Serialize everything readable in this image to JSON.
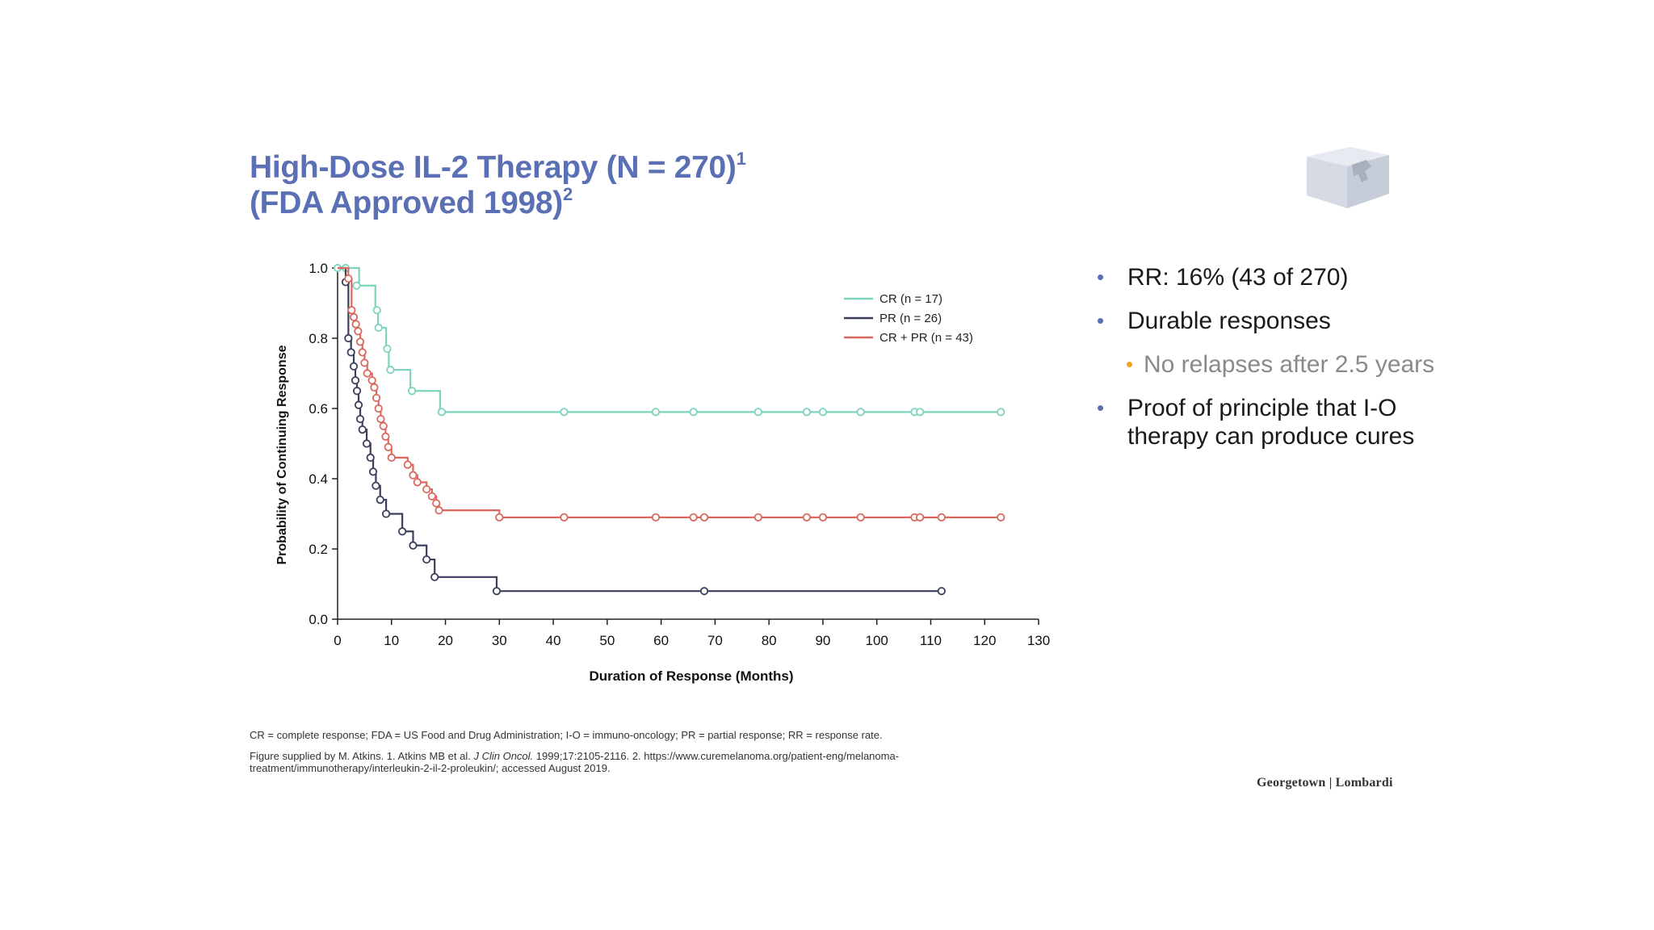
{
  "slide": {
    "title_line1": "High-Dose IL-2 Therapy (N = 270)",
    "title_line1_sup": "1",
    "title_line2": "(FDA Approved 1998)",
    "title_line2_sup": "2",
    "bullets": [
      "RR: 16% (43 of 270)",
      "Durable responses"
    ],
    "sub_bullet": "No relapses after 2.5 years",
    "bullet3": "Proof of principle that I-O therapy can produce cures",
    "footnote1": "CR = complete response; FDA = US Food and Drug Administration; I-O = immuno-oncology; PR = partial response; RR = response rate.",
    "footnote2_pre": "Figure supplied by M. Atkins. 1. Atkins MB et al. ",
    "footnote2_journal": "J Clin Oncol.",
    "footnote2_post": " 1999;17:2105-2116. 2. https://www.curemelanoma.org/patient-eng/melanoma-treatment/immunotherapy/interleukin-2-il-2-proleukin/; accessed August 2019.",
    "brand": "Georgetown | Lombardi",
    "colors": {
      "title": "#5b6fb5",
      "bullet": "#5b6fb5",
      "sub_bullet": "#f0a41c"
    }
  },
  "chart_data": {
    "type": "line",
    "subtype": "kaplan-meier step",
    "xlabel": "Duration of Response (Months)",
    "ylabel": "Probability of Continuing Response",
    "xlim": [
      0,
      130
    ],
    "ylim": [
      0,
      1.0
    ],
    "x_ticks": [
      0,
      10,
      20,
      30,
      40,
      50,
      60,
      70,
      80,
      90,
      100,
      110,
      120,
      130
    ],
    "y_ticks": [
      0.0,
      0.2,
      0.4,
      0.6,
      0.8,
      1.0
    ],
    "y_tick_labels": [
      "0.0",
      "0.2",
      "0.4",
      "0.6",
      "0.8",
      "1.0"
    ],
    "legend_position": "top-right",
    "series": [
      {
        "name": "CR (n = 17)",
        "color": "#7dd3bd",
        "steps": [
          [
            0,
            1.0
          ],
          [
            4,
            0.95
          ],
          [
            7,
            0.88
          ],
          [
            7.5,
            0.83
          ],
          [
            9,
            0.77
          ],
          [
            9.5,
            0.71
          ],
          [
            13.5,
            0.65
          ],
          [
            19,
            0.59
          ],
          [
            123,
            0.59
          ]
        ],
        "censored": [
          [
            0,
            1.0
          ],
          [
            1.5,
            1.0
          ],
          [
            3.5,
            0.95
          ],
          [
            7.3,
            0.88
          ],
          [
            7.6,
            0.83
          ],
          [
            9.2,
            0.77
          ],
          [
            9.8,
            0.71
          ],
          [
            13.8,
            0.65
          ],
          [
            19.3,
            0.59
          ],
          [
            42,
            0.59
          ],
          [
            59,
            0.59
          ],
          [
            66,
            0.59
          ],
          [
            78,
            0.59
          ],
          [
            87,
            0.59
          ],
          [
            90,
            0.59
          ],
          [
            97,
            0.59
          ],
          [
            107,
            0.59
          ],
          [
            108,
            0.59
          ],
          [
            123,
            0.59
          ]
        ]
      },
      {
        "name": "PR (n = 26)",
        "color": "#3b3f5c",
        "steps": [
          [
            0,
            1.0
          ],
          [
            1.5,
            0.96
          ],
          [
            2,
            0.8
          ],
          [
            2.5,
            0.76
          ],
          [
            3,
            0.72
          ],
          [
            3.3,
            0.68
          ],
          [
            3.6,
            0.65
          ],
          [
            3.9,
            0.61
          ],
          [
            4.2,
            0.57
          ],
          [
            4.6,
            0.54
          ],
          [
            5.4,
            0.5
          ],
          [
            6.1,
            0.46
          ],
          [
            6.6,
            0.42
          ],
          [
            7.1,
            0.38
          ],
          [
            7.9,
            0.34
          ],
          [
            9,
            0.3
          ],
          [
            12,
            0.25
          ],
          [
            14,
            0.21
          ],
          [
            16.5,
            0.17
          ],
          [
            18,
            0.12
          ],
          [
            29.5,
            0.08
          ],
          [
            112,
            0.08
          ]
        ],
        "censored": [
          [
            1.5,
            0.96
          ],
          [
            2,
            0.8
          ],
          [
            2.5,
            0.76
          ],
          [
            3,
            0.72
          ],
          [
            3.3,
            0.68
          ],
          [
            3.6,
            0.65
          ],
          [
            3.9,
            0.61
          ],
          [
            4.2,
            0.57
          ],
          [
            4.6,
            0.54
          ],
          [
            5.4,
            0.5
          ],
          [
            6.1,
            0.46
          ],
          [
            6.6,
            0.42
          ],
          [
            7.1,
            0.38
          ],
          [
            7.9,
            0.34
          ],
          [
            9,
            0.3
          ],
          [
            12,
            0.25
          ],
          [
            14,
            0.21
          ],
          [
            16.5,
            0.17
          ],
          [
            18,
            0.12
          ],
          [
            29.5,
            0.08
          ],
          [
            68,
            0.08
          ],
          [
            112,
            0.08
          ]
        ]
      },
      {
        "name": "CR + PR (n = 43)",
        "color": "#d9695e",
        "steps": [
          [
            0,
            1.0
          ],
          [
            2,
            0.97
          ],
          [
            2.6,
            0.88
          ],
          [
            3,
            0.86
          ],
          [
            3.4,
            0.84
          ],
          [
            3.8,
            0.82
          ],
          [
            4.2,
            0.79
          ],
          [
            4.6,
            0.76
          ],
          [
            5,
            0.73
          ],
          [
            5.5,
            0.7
          ],
          [
            6.4,
            0.68
          ],
          [
            6.8,
            0.66
          ],
          [
            7.2,
            0.63
          ],
          [
            7.6,
            0.6
          ],
          [
            8,
            0.57
          ],
          [
            8.5,
            0.55
          ],
          [
            8.9,
            0.52
          ],
          [
            9.4,
            0.49
          ],
          [
            10,
            0.46
          ],
          [
            13,
            0.44
          ],
          [
            14,
            0.41
          ],
          [
            14.8,
            0.39
          ],
          [
            16.5,
            0.37
          ],
          [
            17.5,
            0.35
          ],
          [
            18.3,
            0.33
          ],
          [
            18.8,
            0.31
          ],
          [
            30,
            0.29
          ],
          [
            123,
            0.29
          ]
        ],
        "censored": [
          [
            2,
            0.97
          ],
          [
            2.6,
            0.88
          ],
          [
            3,
            0.86
          ],
          [
            3.4,
            0.84
          ],
          [
            3.8,
            0.82
          ],
          [
            4.2,
            0.79
          ],
          [
            4.6,
            0.76
          ],
          [
            5,
            0.73
          ],
          [
            5.5,
            0.7
          ],
          [
            6.4,
            0.68
          ],
          [
            6.8,
            0.66
          ],
          [
            7.2,
            0.63
          ],
          [
            7.6,
            0.6
          ],
          [
            8,
            0.57
          ],
          [
            8.5,
            0.55
          ],
          [
            8.9,
            0.52
          ],
          [
            9.4,
            0.49
          ],
          [
            10,
            0.46
          ],
          [
            13,
            0.44
          ],
          [
            14,
            0.41
          ],
          [
            14.8,
            0.39
          ],
          [
            16.5,
            0.37
          ],
          [
            17.5,
            0.35
          ],
          [
            18.3,
            0.33
          ],
          [
            18.8,
            0.31
          ],
          [
            30,
            0.29
          ],
          [
            42,
            0.29
          ],
          [
            59,
            0.29
          ],
          [
            66,
            0.29
          ],
          [
            68,
            0.29
          ],
          [
            78,
            0.29
          ],
          [
            87,
            0.29
          ],
          [
            90,
            0.29
          ],
          [
            97,
            0.29
          ],
          [
            107,
            0.29
          ],
          [
            108,
            0.29
          ],
          [
            112,
            0.29
          ],
          [
            123,
            0.29
          ]
        ]
      }
    ]
  }
}
